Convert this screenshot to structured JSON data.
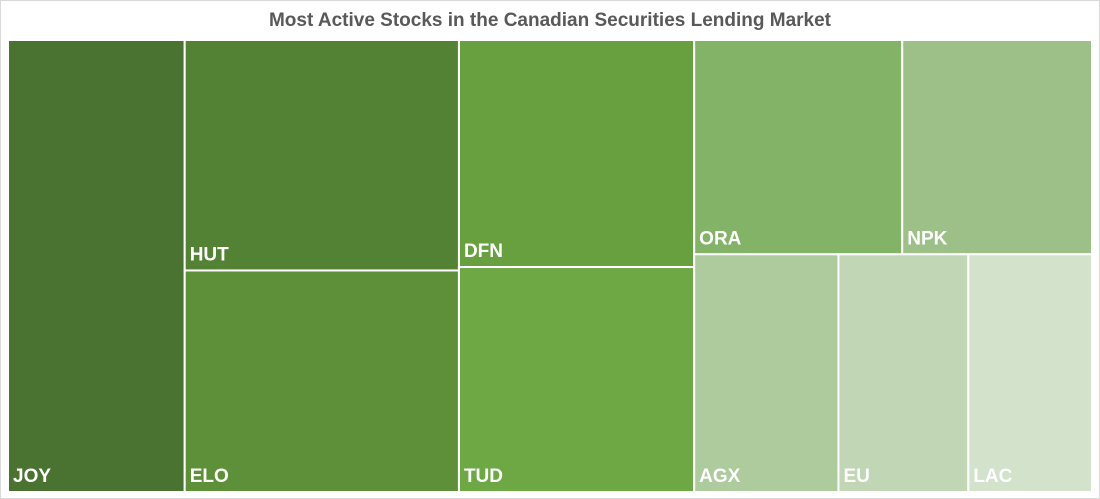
{
  "chart_data": {
    "type": "treemap",
    "title": "Most Active Stocks in the Canadian Securities Lending Market",
    "categories": [
      "JOY",
      "HUT",
      "ELO",
      "DFN",
      "TUD",
      "ORA",
      "NPK",
      "AGX",
      "EU",
      "LAC"
    ],
    "values": [
      16.3,
      12.9,
      12.4,
      10.9,
      10.8,
      9.1,
      8.3,
      7.0,
      6.3,
      6.0
    ],
    "colors": [
      "#4a7230",
      "#548235",
      "#5e903a",
      "#68a040",
      "#6ea844",
      "#82b366",
      "#9dc088",
      "#adcb9c",
      "#c0d6b4",
      "#d3e2cb"
    ]
  }
}
